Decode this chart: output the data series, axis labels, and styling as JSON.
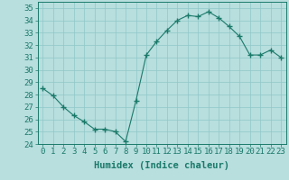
{
  "x": [
    0,
    1,
    2,
    3,
    4,
    5,
    6,
    7,
    8,
    9,
    10,
    11,
    12,
    13,
    14,
    15,
    16,
    17,
    18,
    19,
    20,
    21,
    22,
    23
  ],
  "y": [
    28.5,
    27.9,
    27.0,
    26.3,
    25.8,
    25.2,
    25.2,
    25.0,
    24.2,
    27.5,
    31.2,
    32.3,
    33.2,
    34.0,
    34.4,
    34.3,
    34.7,
    34.2,
    33.5,
    32.7,
    31.2,
    31.2,
    31.6,
    31.0
  ],
  "line_color": "#1a7a6a",
  "marker": "+",
  "marker_size": 4,
  "bg_color": "#b8dede",
  "grid_color": "#8fc8c8",
  "xlabel": "Humidex (Indice chaleur)",
  "ylim": [
    24,
    35.5
  ],
  "xlim": [
    -0.5,
    23.5
  ],
  "yticks": [
    24,
    25,
    26,
    27,
    28,
    29,
    30,
    31,
    32,
    33,
    34,
    35
  ],
  "xticks": [
    0,
    1,
    2,
    3,
    4,
    5,
    6,
    7,
    8,
    9,
    10,
    11,
    12,
    13,
    14,
    15,
    16,
    17,
    18,
    19,
    20,
    21,
    22,
    23
  ],
  "label_fontsize": 7.5,
  "tick_fontsize": 6.5
}
